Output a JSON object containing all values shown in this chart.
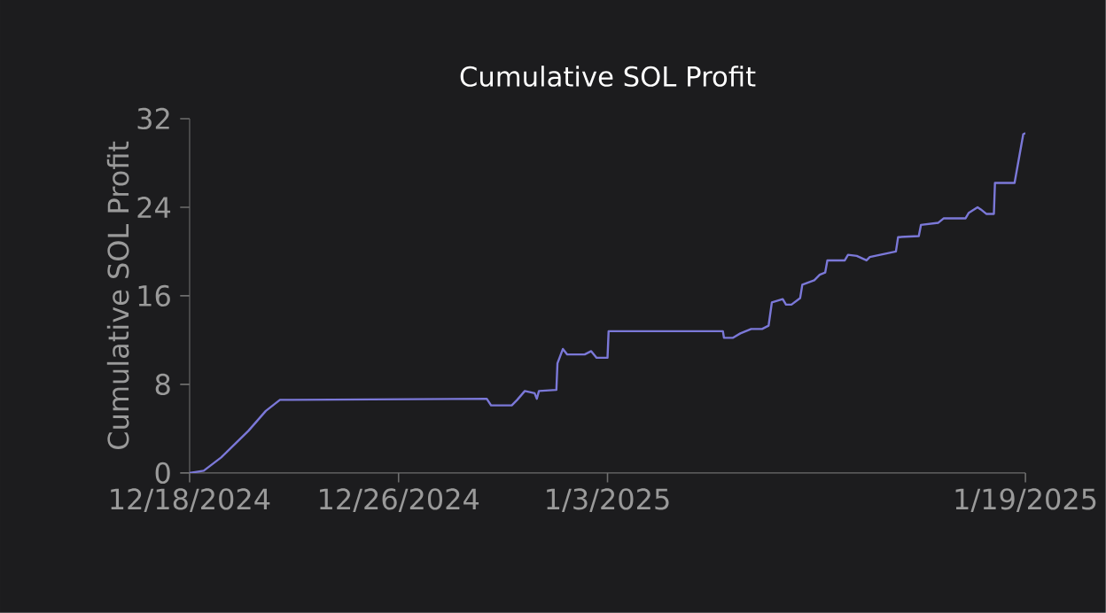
{
  "chart_data": {
    "type": "line",
    "title": "Cumulative SOL Profit",
    "ylabel": "Cumulative SOL Profit",
    "xlim": [
      "2024-12-18",
      "2025-01-19"
    ],
    "ylim": [
      0,
      32
    ],
    "xticks": [
      {
        "value": "2024-12-18",
        "label": "12/18/2024"
      },
      {
        "value": "2024-12-26",
        "label": "12/26/2024"
      },
      {
        "value": "2025-01-03",
        "label": "1/3/2025"
      },
      {
        "value": "2025-01-19",
        "label": "1/19/2025"
      }
    ],
    "yticks": [
      0,
      8,
      16,
      24,
      32
    ],
    "grid": false,
    "series": [
      {
        "color": "#7b78d8",
        "x": [
          "2024-12-18T00:00",
          "2024-12-18T13:00",
          "2024-12-19T05:00",
          "2024-12-20T06:00",
          "2024-12-20T22:00",
          "2024-12-21T11:00",
          "2024-12-21T22:00",
          "2024-12-29T09:00",
          "2024-12-29T13:00",
          "2024-12-30T08:00",
          "2024-12-30T13:00",
          "2024-12-30T20:00",
          "2024-12-31T05:00",
          "2024-12-31T07:00",
          "2024-12-31T09:00",
          "2025-01-01T01:00",
          "2025-01-01T02:00",
          "2025-01-01T07:00",
          "2025-01-01T11:00",
          "2025-01-02T03:00",
          "2025-01-02T09:00",
          "2025-01-02T14:00",
          "2025-01-03T00:00",
          "2025-01-03T01:00",
          "2025-01-07T10:00",
          "2025-01-07T11:00",
          "2025-01-07T19:00",
          "2025-01-08T02:00",
          "2025-01-08T12:00",
          "2025-01-08T22:00",
          "2025-01-09T04:00",
          "2025-01-09T07:00",
          "2025-01-09T17:00",
          "2025-01-09T20:00",
          "2025-01-10T01:00",
          "2025-01-10T09:00",
          "2025-01-10T11:00",
          "2025-01-10T22:00",
          "2025-01-11T03:00",
          "2025-01-11T08:00",
          "2025-01-11T10:00",
          "2025-01-12T02:00",
          "2025-01-12T05:00",
          "2025-01-12T13:00",
          "2025-01-12T22:00",
          "2025-01-13T01:00",
          "2025-01-14T01:00",
          "2025-01-14T03:00",
          "2025-01-14T22:00",
          "2025-01-15T00:00",
          "2025-01-15T16:00",
          "2025-01-15T21:00",
          "2025-01-16T17:00",
          "2025-01-16T20:00",
          "2025-01-17T04:00",
          "2025-01-17T07:00",
          "2025-01-17T12:00",
          "2025-01-17T19:00",
          "2025-01-17T20:00",
          "2025-01-18T14:00",
          "2025-01-18T22:00",
          "2025-01-19T00:00"
        ],
        "values": [
          0,
          0.2,
          1.4,
          3.8,
          5.6,
          6.6,
          6.6,
          6.7,
          6.1,
          6.1,
          6.6,
          7.4,
          7.2,
          6.7,
          7.4,
          7.5,
          9.9,
          11.2,
          10.7,
          10.7,
          11.0,
          10.4,
          10.4,
          12.8,
          12.8,
          12.2,
          12.2,
          12.6,
          13.0,
          13.0,
          13.3,
          15.4,
          15.7,
          15.2,
          15.2,
          15.8,
          17.0,
          17.4,
          17.9,
          18.1,
          19.2,
          19.2,
          19.7,
          19.6,
          19.2,
          19.5,
          20.0,
          21.3,
          21.4,
          22.4,
          22.6,
          23.0,
          23.0,
          23.5,
          24.0,
          23.8,
          23.4,
          23.4,
          26.2,
          26.2,
          30.6,
          30.7
        ]
      }
    ]
  }
}
